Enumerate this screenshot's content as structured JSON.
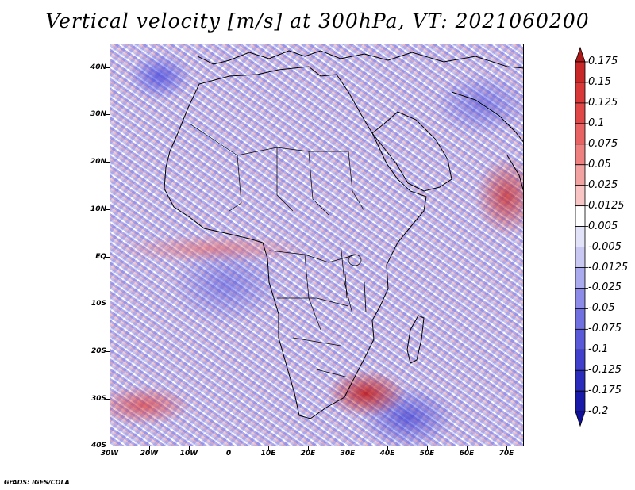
{
  "title": "Vertical velocity [m/s] at 300hPa, VT: 2021060200",
  "map": {
    "lat_labels": [
      "40N",
      "30N",
      "20N",
      "10N",
      "EQ",
      "10S",
      "20S",
      "30S",
      "40S"
    ],
    "lon_labels": [
      "30W",
      "20W",
      "10W",
      "0",
      "10E",
      "20E",
      "30E",
      "40E",
      "50E",
      "60E",
      "70E"
    ],
    "lat_range": [
      -40,
      45
    ],
    "lon_range": [
      -30,
      75
    ]
  },
  "colorbar": {
    "labels": [
      "0.175",
      "0.15",
      "0.125",
      "0.1",
      "0.075",
      "0.05",
      "0.025",
      "0.0125",
      "0.005",
      "-0.005",
      "-0.0125",
      "-0.025",
      "-0.05",
      "-0.075",
      "-0.1",
      "-0.125",
      "-0.175",
      "-0.2"
    ],
    "colors": [
      "#b01818",
      "#c82828",
      "#d83838",
      "#e04848",
      "#e86464",
      "#ee8080",
      "#f3a2a2",
      "#f8c4c4",
      "#ffffff",
      "#e2e2f8",
      "#c8c8f2",
      "#aaaaee",
      "#8c8ce8",
      "#7070e0",
      "#5a5ad8",
      "#4040cc",
      "#2c2cbc",
      "#1a1aa8",
      "#10109a"
    ]
  },
  "footer": "GrADS: IGES/COLA"
}
